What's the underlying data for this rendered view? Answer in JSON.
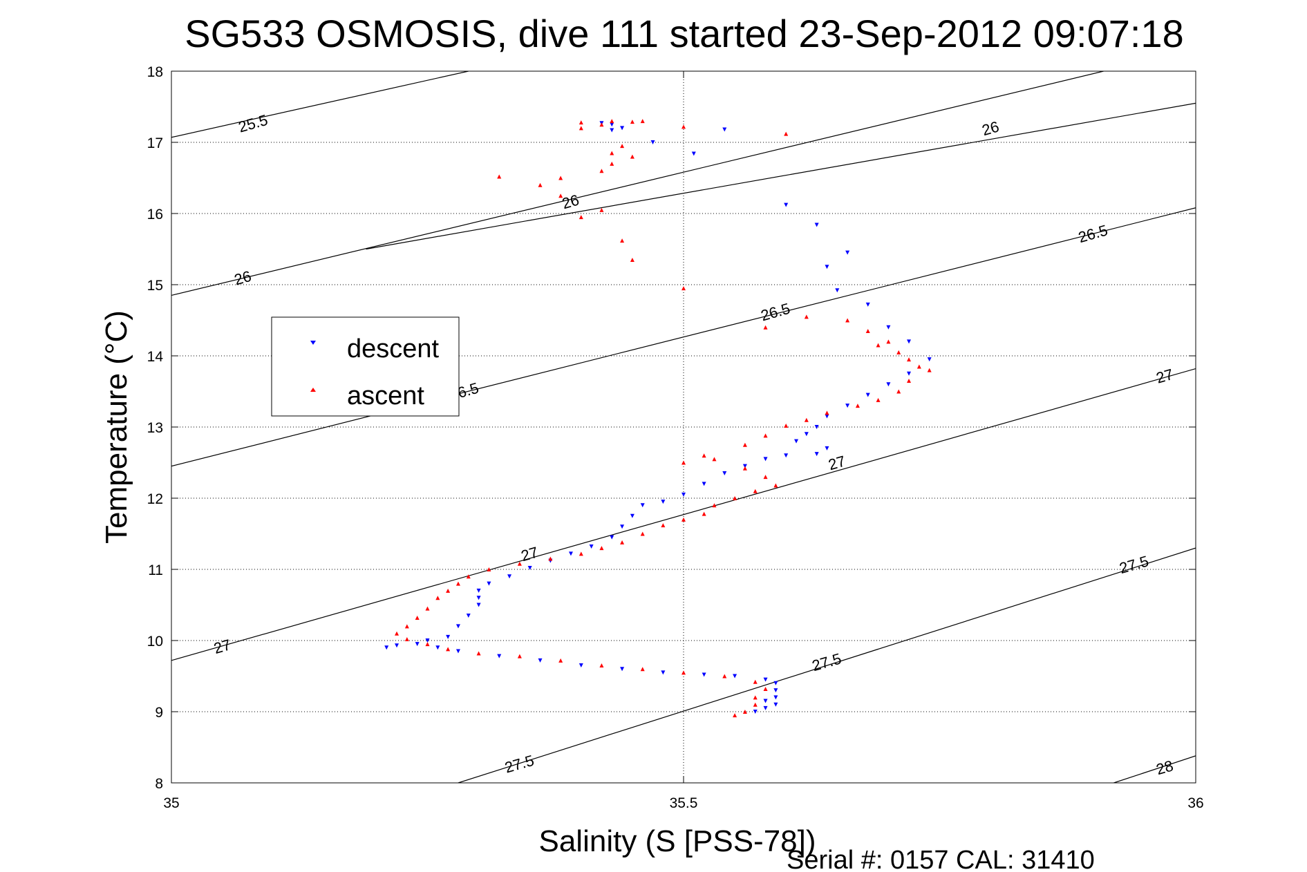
{
  "chart_data": {
    "type": "scatter",
    "title": "SG533 OSMOSIS, dive 111 started 23-Sep-2012 09:07:18",
    "xlabel": "Salinity (S [PSS-78])",
    "ylabel": "Temperature (°C)",
    "xlim": [
      35,
      36
    ],
    "ylim": [
      8,
      18
    ],
    "x_ticks": [
      "35",
      "35.5",
      "36"
    ],
    "y_ticks": [
      "8",
      "9",
      "10",
      "11",
      "12",
      "13",
      "14",
      "15",
      "16",
      "17",
      "18"
    ],
    "grid": true,
    "legend_position": "left",
    "footer": "Serial #: 0157  CAL: 31410",
    "density_contours": [
      {
        "label": "25.5",
        "points": [
          [
            35,
            17.07
          ],
          [
            35.29,
            18
          ]
        ]
      },
      {
        "label": "26",
        "points": [
          [
            35,
            14.85
          ],
          [
            35.91,
            18
          ]
        ]
      },
      {
        "label": "26",
        "points": [
          [
            35.19,
            15.5
          ],
          [
            36,
            17.55
          ]
        ]
      },
      {
        "label": "26.5",
        "points": [
          [
            35,
            12.45
          ],
          [
            36,
            16.08
          ]
        ]
      },
      {
        "label": "27",
        "points": [
          [
            35,
            9.72
          ],
          [
            36,
            13.82
          ]
        ]
      },
      {
        "label": "27.5",
        "points": [
          [
            35.28,
            8
          ],
          [
            36,
            11.3
          ]
        ]
      },
      {
        "label": "28",
        "points": [
          [
            35.92,
            8
          ],
          [
            36,
            8.38
          ]
        ]
      }
    ],
    "contour_labels": [
      {
        "text": "25.5",
        "x": 35.08,
        "y": 17.25
      },
      {
        "text": "26",
        "x": 35.07,
        "y": 15.08
      },
      {
        "text": "26",
        "x": 35.39,
        "y": 16.15
      },
      {
        "text": "26",
        "x": 35.8,
        "y": 17.18
      },
      {
        "text": "26.5",
        "x": 35.59,
        "y": 14.6
      },
      {
        "text": "26.5",
        "x": 35.9,
        "y": 15.7
      },
      {
        "text": "6.5",
        "x": 35.29,
        "y": 13.5
      },
      {
        "text": "27",
        "x": 35.05,
        "y": 9.9
      },
      {
        "text": "27",
        "x": 35.35,
        "y": 11.2
      },
      {
        "text": "27",
        "x": 35.65,
        "y": 12.48
      },
      {
        "text": "27",
        "x": 35.97,
        "y": 13.7
      },
      {
        "text": "27.5",
        "x": 35.34,
        "y": 8.25
      },
      {
        "text": "27.5",
        "x": 35.64,
        "y": 9.68
      },
      {
        "text": "27.5",
        "x": 35.94,
        "y": 11.05
      },
      {
        "text": "28",
        "x": 35.97,
        "y": 8.2
      }
    ],
    "series": [
      {
        "name": "descent",
        "color": "#0000ff",
        "marker": "triangle-down",
        "points": [
          [
            35.42,
            17.27
          ],
          [
            35.43,
            17.25
          ],
          [
            35.43,
            17.17
          ],
          [
            35.44,
            17.2
          ],
          [
            35.47,
            17.0
          ],
          [
            35.51,
            16.84
          ],
          [
            35.54,
            17.18
          ],
          [
            35.6,
            16.12
          ],
          [
            35.63,
            15.84
          ],
          [
            35.64,
            15.25
          ],
          [
            35.66,
            15.45
          ],
          [
            35.65,
            14.92
          ],
          [
            35.68,
            14.72
          ],
          [
            35.7,
            14.4
          ],
          [
            35.72,
            14.2
          ],
          [
            35.74,
            13.95
          ],
          [
            35.72,
            13.75
          ],
          [
            35.7,
            13.6
          ],
          [
            35.68,
            13.45
          ],
          [
            35.66,
            13.3
          ],
          [
            35.64,
            13.15
          ],
          [
            35.63,
            13.0
          ],
          [
            35.62,
            12.9
          ],
          [
            35.61,
            12.8
          ],
          [
            35.64,
            12.7
          ],
          [
            35.63,
            12.62
          ],
          [
            35.6,
            12.6
          ],
          [
            35.58,
            12.55
          ],
          [
            35.56,
            12.45
          ],
          [
            35.54,
            12.35
          ],
          [
            35.52,
            12.2
          ],
          [
            35.5,
            12.05
          ],
          [
            35.48,
            11.95
          ],
          [
            35.46,
            11.9
          ],
          [
            35.45,
            11.75
          ],
          [
            35.44,
            11.6
          ],
          [
            35.43,
            11.45
          ],
          [
            35.41,
            11.32
          ],
          [
            35.39,
            11.22
          ],
          [
            35.37,
            11.12
          ],
          [
            35.35,
            11.02
          ],
          [
            35.33,
            10.9
          ],
          [
            35.31,
            10.8
          ],
          [
            35.3,
            10.7
          ],
          [
            35.3,
            10.6
          ],
          [
            35.3,
            10.5
          ],
          [
            35.29,
            10.35
          ],
          [
            35.28,
            10.2
          ],
          [
            35.27,
            10.05
          ],
          [
            35.25,
            10.0
          ],
          [
            35.24,
            9.95
          ],
          [
            35.22,
            9.93
          ],
          [
            35.21,
            9.9
          ],
          [
            35.26,
            9.9
          ],
          [
            35.28,
            9.85
          ],
          [
            35.32,
            9.78
          ],
          [
            35.36,
            9.72
          ],
          [
            35.4,
            9.65
          ],
          [
            35.44,
            9.6
          ],
          [
            35.48,
            9.55
          ],
          [
            35.52,
            9.52
          ],
          [
            35.55,
            9.5
          ],
          [
            35.58,
            9.45
          ],
          [
            35.59,
            9.4
          ],
          [
            35.59,
            9.3
          ],
          [
            35.59,
            9.2
          ],
          [
            35.58,
            9.15
          ],
          [
            35.59,
            9.1
          ],
          [
            35.58,
            9.05
          ],
          [
            35.57,
            9.0
          ]
        ]
      },
      {
        "name": "ascent",
        "color": "#ff0000",
        "marker": "triangle-up",
        "points": [
          [
            35.4,
            17.28
          ],
          [
            35.43,
            17.3
          ],
          [
            35.45,
            17.29
          ],
          [
            35.46,
            17.3
          ],
          [
            35.4,
            17.2
          ],
          [
            35.42,
            17.25
          ],
          [
            35.5,
            17.22
          ],
          [
            35.6,
            17.12
          ],
          [
            35.44,
            16.95
          ],
          [
            35.43,
            16.85
          ],
          [
            35.43,
            16.7
          ],
          [
            35.42,
            16.6
          ],
          [
            35.45,
            16.8
          ],
          [
            35.38,
            16.5
          ],
          [
            35.32,
            16.52
          ],
          [
            35.36,
            16.4
          ],
          [
            35.38,
            16.25
          ],
          [
            35.4,
            15.95
          ],
          [
            35.42,
            16.05
          ],
          [
            35.44,
            15.62
          ],
          [
            35.45,
            15.35
          ],
          [
            35.5,
            14.95
          ],
          [
            35.58,
            14.4
          ],
          [
            35.62,
            14.55
          ],
          [
            35.66,
            14.5
          ],
          [
            35.68,
            14.35
          ],
          [
            35.69,
            14.15
          ],
          [
            35.7,
            14.2
          ],
          [
            35.71,
            14.05
          ],
          [
            35.72,
            13.95
          ],
          [
            35.73,
            13.85
          ],
          [
            35.74,
            13.8
          ],
          [
            35.72,
            13.65
          ],
          [
            35.71,
            13.5
          ],
          [
            35.69,
            13.38
          ],
          [
            35.67,
            13.3
          ],
          [
            35.64,
            13.2
          ],
          [
            35.62,
            13.1
          ],
          [
            35.6,
            13.02
          ],
          [
            35.58,
            12.88
          ],
          [
            35.56,
            12.75
          ],
          [
            35.52,
            12.6
          ],
          [
            35.5,
            12.5
          ],
          [
            35.53,
            12.55
          ],
          [
            35.56,
            12.42
          ],
          [
            35.58,
            12.3
          ],
          [
            35.59,
            12.18
          ],
          [
            35.57,
            12.1
          ],
          [
            35.55,
            12.0
          ],
          [
            35.53,
            11.9
          ],
          [
            35.52,
            11.78
          ],
          [
            35.5,
            11.7
          ],
          [
            35.48,
            11.62
          ],
          [
            35.46,
            11.5
          ],
          [
            35.44,
            11.38
          ],
          [
            35.42,
            11.3
          ],
          [
            35.4,
            11.22
          ],
          [
            35.37,
            11.15
          ],
          [
            35.34,
            11.08
          ],
          [
            35.31,
            11.0
          ],
          [
            35.29,
            10.9
          ],
          [
            35.28,
            10.8
          ],
          [
            35.27,
            10.7
          ],
          [
            35.26,
            10.6
          ],
          [
            35.25,
            10.45
          ],
          [
            35.24,
            10.32
          ],
          [
            35.23,
            10.2
          ],
          [
            35.22,
            10.1
          ],
          [
            35.23,
            10.02
          ],
          [
            35.25,
            9.95
          ],
          [
            35.27,
            9.88
          ],
          [
            35.3,
            9.82
          ],
          [
            35.34,
            9.78
          ],
          [
            35.38,
            9.72
          ],
          [
            35.42,
            9.65
          ],
          [
            35.46,
            9.6
          ],
          [
            35.5,
            9.55
          ],
          [
            35.54,
            9.5
          ],
          [
            35.57,
            9.42
          ],
          [
            35.58,
            9.32
          ],
          [
            35.57,
            9.2
          ],
          [
            35.57,
            9.1
          ],
          [
            35.56,
            9.0
          ],
          [
            35.55,
            8.95
          ]
        ]
      }
    ]
  }
}
